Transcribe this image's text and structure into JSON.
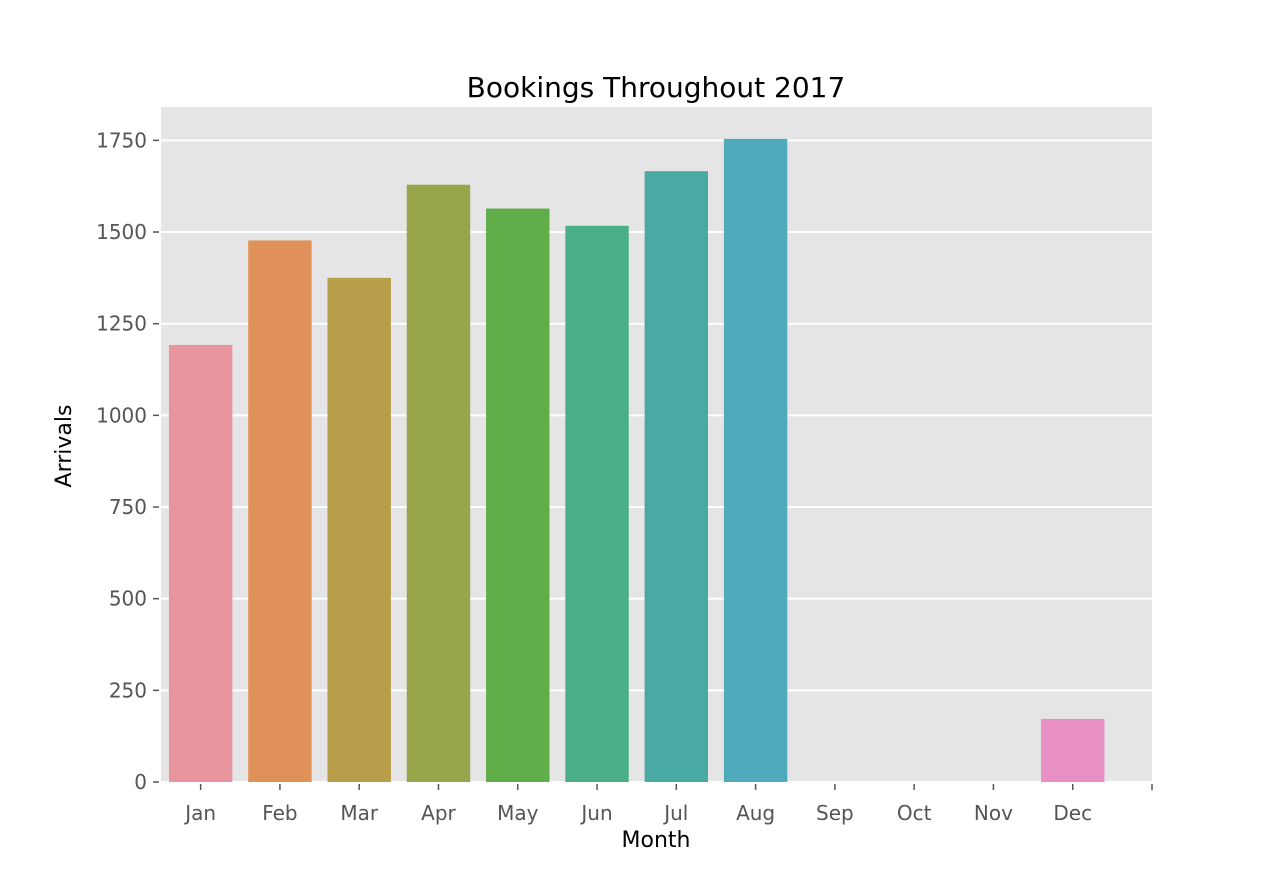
{
  "chart_data": {
    "type": "bar",
    "title": "Bookings Throughout 2017",
    "xlabel": "Month",
    "ylabel": "Arrivals",
    "categories": [
      "Jan",
      "Feb",
      "Mar",
      "Apr",
      "May",
      "Jun",
      "Jul",
      "Aug",
      "Sep",
      "Oct",
      "Nov",
      "Dec"
    ],
    "values": [
      1192,
      1477,
      1375,
      1629,
      1564,
      1517,
      1666,
      1754,
      0,
      0,
      0,
      172
    ],
    "colors": [
      "#e8959f",
      "#e0915a",
      "#b89d4b",
      "#98a54a",
      "#5fae49",
      "#4aaf88",
      "#48aaa3",
      "#4faabb",
      "#6aa6dc",
      "#a39ae3",
      "#d891e0",
      "#e88fc4"
    ],
    "yticks": [
      "0",
      "250",
      "500",
      "750",
      "1000",
      "1250",
      "1500",
      "1750"
    ],
    "ylim": [
      0,
      1841
    ],
    "grid": true,
    "background": "#e5e5e5"
  }
}
